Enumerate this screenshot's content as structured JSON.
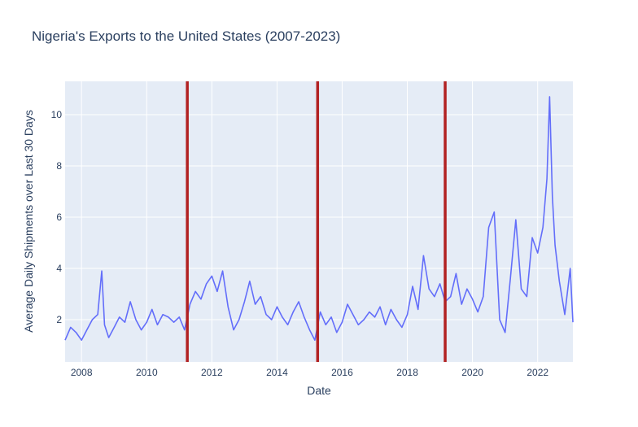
{
  "chart_data": {
    "type": "line",
    "title": "Nigeria's Exports to the United States (2007-2023)",
    "xlabel": "Date",
    "ylabel": "Average Daily Shipments over Last 30 Days",
    "x_range": [
      "2007-07-01",
      "2023-01-31"
    ],
    "ylim": [
      0.35,
      11.3
    ],
    "x_ticks": [
      "2008",
      "2010",
      "2012",
      "2014",
      "2016",
      "2018",
      "2020",
      "2022"
    ],
    "y_ticks": [
      2,
      4,
      6,
      8,
      10
    ],
    "grid": true,
    "legend": "none",
    "colors": {
      "series": "#636efa",
      "vlines": "#b22222",
      "plot_bg": "#e5ecf6",
      "grid": "#ffffff",
      "text": "#2a3f5f"
    },
    "vertical_lines": [
      "2011-04-01",
      "2015-04-01",
      "2019-03-01"
    ],
    "series": [
      {
        "x": [
          "2007-07-01",
          "2007-09-01",
          "2007-11-01",
          "2008-01-01",
          "2008-03-01",
          "2008-05-01",
          "2008-07-01",
          "2008-08-15",
          "2008-09-15",
          "2008-11-01",
          "2009-01-01",
          "2009-03-01",
          "2009-05-01",
          "2009-07-01",
          "2009-09-01",
          "2009-11-01",
          "2010-01-01",
          "2010-03-01",
          "2010-05-01",
          "2010-07-01",
          "2010-09-01",
          "2010-11-01",
          "2011-01-01",
          "2011-03-01",
          "2011-05-01",
          "2011-07-01",
          "2011-09-01",
          "2011-11-01",
          "2012-01-01",
          "2012-03-01",
          "2012-05-01",
          "2012-07-01",
          "2012-09-01",
          "2012-11-01",
          "2013-01-01",
          "2013-03-01",
          "2013-05-01",
          "2013-07-01",
          "2013-09-01",
          "2013-11-01",
          "2014-01-01",
          "2014-03-01",
          "2014-05-01",
          "2014-07-01",
          "2014-09-01",
          "2014-11-01",
          "2015-01-01",
          "2015-03-01",
          "2015-05-01",
          "2015-07-01",
          "2015-09-01",
          "2015-11-01",
          "2016-01-01",
          "2016-03-01",
          "2016-05-01",
          "2016-07-01",
          "2016-09-01",
          "2016-11-01",
          "2017-01-01",
          "2017-03-01",
          "2017-05-01",
          "2017-07-01",
          "2017-09-01",
          "2017-11-01",
          "2018-01-01",
          "2018-03-01",
          "2018-05-01",
          "2018-07-01",
          "2018-09-01",
          "2018-11-01",
          "2019-01-01",
          "2019-03-01",
          "2019-05-01",
          "2019-07-01",
          "2019-09-01",
          "2019-11-01",
          "2020-01-01",
          "2020-03-01",
          "2020-05-01",
          "2020-07-01",
          "2020-09-01",
          "2020-11-01",
          "2021-01-01",
          "2021-03-01",
          "2021-05-01",
          "2021-07-01",
          "2021-09-01",
          "2021-11-01",
          "2022-01-01",
          "2022-03-01",
          "2022-04-15",
          "2022-05-15",
          "2022-06-15",
          "2022-07-15",
          "2022-09-01",
          "2022-11-01",
          "2023-01-01",
          "2023-01-31"
        ],
        "y": [
          1.2,
          1.7,
          1.5,
          1.2,
          1.6,
          2.0,
          2.2,
          3.9,
          1.8,
          1.3,
          1.7,
          2.1,
          1.9,
          2.7,
          2.0,
          1.6,
          1.9,
          2.4,
          1.8,
          2.2,
          2.1,
          1.9,
          2.1,
          1.6,
          2.6,
          3.1,
          2.8,
          3.4,
          3.7,
          3.1,
          3.9,
          2.5,
          1.6,
          2.0,
          2.7,
          3.5,
          2.6,
          2.9,
          2.2,
          2.0,
          2.5,
          2.1,
          1.8,
          2.3,
          2.7,
          2.1,
          1.6,
          1.2,
          2.3,
          1.8,
          2.1,
          1.5,
          1.9,
          2.6,
          2.2,
          1.8,
          2.0,
          2.3,
          2.1,
          2.5,
          1.8,
          2.4,
          2.0,
          1.7,
          2.2,
          3.3,
          2.4,
          4.5,
          3.2,
          2.9,
          3.4,
          2.7,
          2.9,
          3.8,
          2.6,
          3.2,
          2.8,
          2.3,
          2.9,
          5.6,
          6.2,
          2.0,
          1.5,
          3.6,
          5.9,
          3.2,
          2.9,
          5.2,
          4.6,
          5.6,
          7.5,
          10.7,
          6.8,
          4.9,
          3.5,
          2.2,
          4.0,
          1.9
        ]
      }
    ]
  }
}
